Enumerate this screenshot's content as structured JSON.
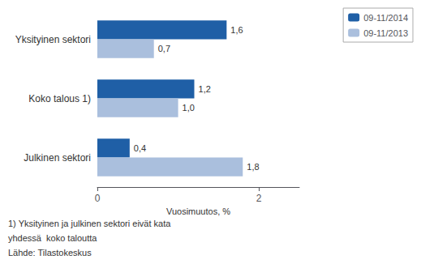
{
  "chart_data": {
    "type": "bar",
    "orientation": "horizontal",
    "categories": [
      "Julkinen sektori",
      "Koko talous 1)",
      "Yksityinen sektori"
    ],
    "series": [
      {
        "name": "09-11/2014",
        "color": "#1F5FA6",
        "values": [
          0.4,
          1.2,
          1.6
        ],
        "value_labels": [
          "0,4",
          "1,2",
          "1,6"
        ]
      },
      {
        "name": "09-11/2013",
        "color": "#AABFDD",
        "values": [
          1.8,
          1.0,
          0.7
        ],
        "value_labels": [
          "1,8",
          "1,0",
          "0,7"
        ]
      }
    ],
    "xlabel": "Vuosimuutos, %",
    "xlim": [
      0,
      2.5
    ],
    "xticks": [
      0,
      2
    ],
    "grid": false,
    "legend": "upper right",
    "data_labels": true,
    "annotations": [
      "1) Yksityinen ja julkinen sektori eivät kata",
      "yhdessä  koko taloutta",
      "Lähde: Tilastokeskus"
    ]
  }
}
